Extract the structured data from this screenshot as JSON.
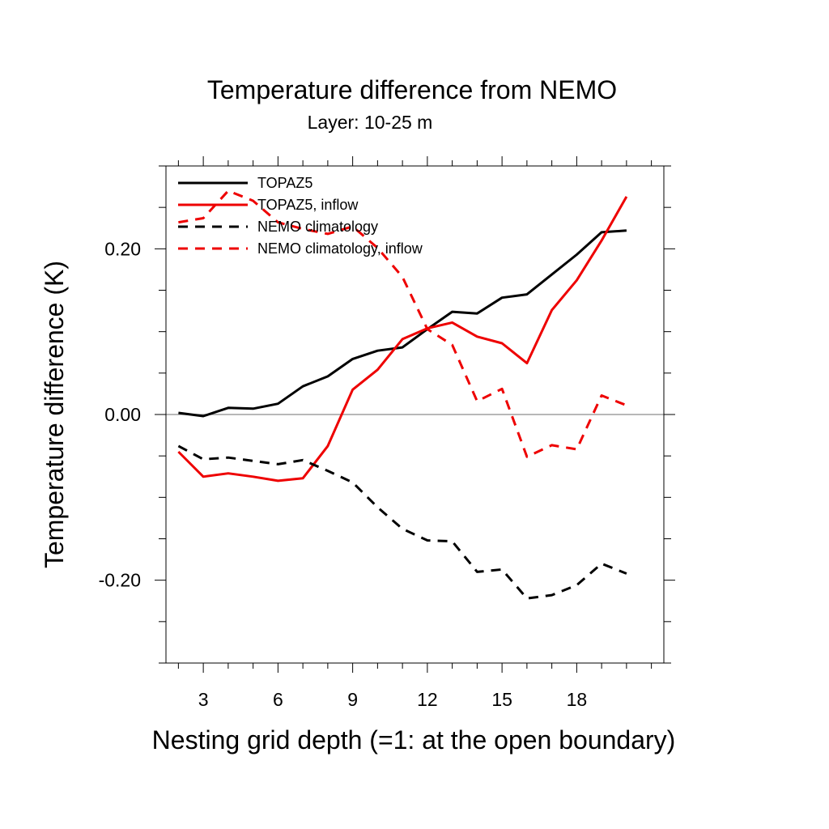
{
  "chart_data": {
    "type": "line",
    "title": "Temperature difference from NEMO",
    "subtitle": "Layer: 10-25 m",
    "xlabel": "Nesting grid depth (=1: at the open boundary)",
    "ylabel": "Temperature difference (K)",
    "xlim": [
      1.5,
      21.5
    ],
    "ylim": [
      -0.3,
      0.3
    ],
    "x_ticks": [
      3,
      6,
      9,
      12,
      15,
      18
    ],
    "x_tick_labels": [
      "3",
      "6",
      "9",
      "12",
      "15",
      "18"
    ],
    "y_ticks": [
      -0.2,
      0.0,
      0.2
    ],
    "y_tick_labels": [
      "-0.20",
      "0.00",
      "0.20"
    ],
    "zero_line": true,
    "grid": false,
    "legend_position": "top-left",
    "x": [
      2,
      3,
      4,
      5,
      6,
      7,
      8,
      9,
      10,
      11,
      12,
      13,
      14,
      15,
      16,
      17,
      18,
      19,
      20
    ],
    "series": [
      {
        "name": "TOPAZ5",
        "color": "#000000",
        "dash": "solid",
        "values": [
          0.002,
          -0.002,
          0.008,
          0.007,
          0.013,
          0.034,
          0.046,
          0.067,
          0.077,
          0.081,
          0.103,
          0.124,
          0.122,
          0.141,
          0.145,
          0.169,
          0.193,
          0.22,
          0.222
        ]
      },
      {
        "name": "TOPAZ5, inflow",
        "color": "#ee0000",
        "dash": "solid",
        "values": [
          -0.045,
          -0.075,
          -0.071,
          -0.075,
          -0.08,
          -0.077,
          -0.038,
          0.03,
          0.054,
          0.091,
          0.104,
          0.111,
          0.094,
          0.086,
          0.062,
          0.126,
          0.162,
          0.21,
          0.263
        ]
      },
      {
        "name": "NEMO climatology",
        "color": "#000000",
        "dash": "dashed",
        "values": [
          -0.038,
          -0.054,
          -0.052,
          -0.056,
          -0.06,
          -0.055,
          -0.068,
          -0.082,
          -0.112,
          -0.138,
          -0.152,
          -0.153,
          -0.19,
          -0.187,
          -0.222,
          -0.218,
          -0.206,
          -0.18,
          -0.192
        ]
      },
      {
        "name": "NEMO climatology, inflow",
        "color": "#ee0000",
        "dash": "dashed",
        "values": [
          0.232,
          0.237,
          0.27,
          0.258,
          0.232,
          0.224,
          0.218,
          0.227,
          0.201,
          0.166,
          0.103,
          0.084,
          0.016,
          0.031,
          -0.051,
          -0.037,
          -0.042,
          0.023,
          0.011
        ]
      }
    ]
  }
}
